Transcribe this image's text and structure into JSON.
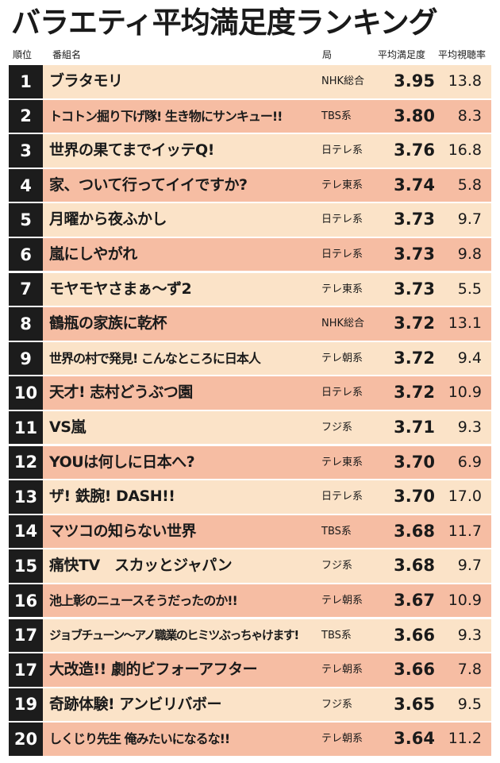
{
  "title": "バラエティ平均満足度ランキング",
  "headers": {
    "rank": "順位",
    "name": "番組名",
    "station": "局",
    "satisfaction": "平均満足度",
    "viewership": "平均視聴率"
  },
  "rows": [
    {
      "rank": "1",
      "name": "ブラタモリ",
      "station": "NHK総合",
      "satisfaction": "3.95",
      "viewership": "13.8"
    },
    {
      "rank": "2",
      "name": "トコトン掘り下げ隊! 生き物にサンキュー!!",
      "station": "TBS系",
      "satisfaction": "3.80",
      "viewership": "8.3"
    },
    {
      "rank": "3",
      "name": "世界の果てまでイッテQ!",
      "station": "日テレ系",
      "satisfaction": "3.76",
      "viewership": "16.8"
    },
    {
      "rank": "4",
      "name": "家、ついて行ってイイですか?",
      "station": "テレ東系",
      "satisfaction": "3.74",
      "viewership": "5.8"
    },
    {
      "rank": "5",
      "name": "月曜から夜ふかし",
      "station": "日テレ系",
      "satisfaction": "3.73",
      "viewership": "9.7"
    },
    {
      "rank": "6",
      "name": "嵐にしやがれ",
      "station": "日テレ系",
      "satisfaction": "3.73",
      "viewership": "9.8"
    },
    {
      "rank": "7",
      "name": "モヤモヤさまぁ〜ず2",
      "station": "テレ東系",
      "satisfaction": "3.73",
      "viewership": "5.5"
    },
    {
      "rank": "8",
      "name": "鶴瓶の家族に乾杯",
      "station": "NHK総合",
      "satisfaction": "3.72",
      "viewership": "13.1"
    },
    {
      "rank": "9",
      "name": "世界の村で発見! こんなところに日本人",
      "station": "テレ朝系",
      "satisfaction": "3.72",
      "viewership": "9.4"
    },
    {
      "rank": "10",
      "name": "天才! 志村どうぶつ園",
      "station": "日テレ系",
      "satisfaction": "3.72",
      "viewership": "10.9"
    },
    {
      "rank": "11",
      "name": "VS嵐",
      "station": "フジ系",
      "satisfaction": "3.71",
      "viewership": "9.3"
    },
    {
      "rank": "12",
      "name": "YOUは何しに日本へ?",
      "station": "テレ東系",
      "satisfaction": "3.70",
      "viewership": "6.9"
    },
    {
      "rank": "13",
      "name": "ザ! 鉄腕! DASH!!",
      "station": "日テレ系",
      "satisfaction": "3.70",
      "viewership": "17.0"
    },
    {
      "rank": "14",
      "name": "マツコの知らない世界",
      "station": "TBS系",
      "satisfaction": "3.68",
      "viewership": "11.7"
    },
    {
      "rank": "15",
      "name": "痛快TV　スカッとジャパン",
      "station": "フジ系",
      "satisfaction": "3.68",
      "viewership": "9.7"
    },
    {
      "rank": "16",
      "name": "池上彰のニュースそうだったのか!!",
      "station": "テレ朝系",
      "satisfaction": "3.67",
      "viewership": "10.9"
    },
    {
      "rank": "17",
      "name": "ジョブチューン〜アノ職業のヒミツぶっちゃけます!",
      "station": "TBS系",
      "satisfaction": "3.66",
      "viewership": "9.3"
    },
    {
      "rank": "17",
      "name": "大改造!! 劇的ビフォーアフター",
      "station": "テレ朝系",
      "satisfaction": "3.66",
      "viewership": "7.8"
    },
    {
      "rank": "19",
      "name": "奇跡体験! アンビリバボー",
      "station": "フジ系",
      "satisfaction": "3.65",
      "viewership": "9.5"
    },
    {
      "rank": "20",
      "name": "しくじり先生 俺みたいになるな!!",
      "station": "テレ朝系",
      "satisfaction": "3.64",
      "viewership": "11.2"
    }
  ],
  "colors": {
    "row_light": "#fbe3c8",
    "row_dark": "#f6bda3",
    "rank_bg": "#1c1c1c",
    "rank_text": "#ffffff"
  }
}
